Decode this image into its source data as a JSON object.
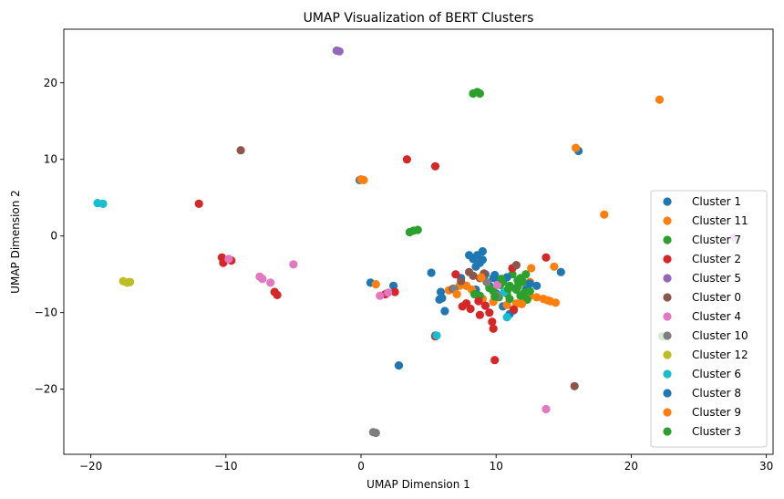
{
  "chart_data": {
    "type": "scatter",
    "title": "UMAP Visualization of BERT Clusters",
    "xlabel": "UMAP Dimension 1",
    "ylabel": "UMAP Dimension 2",
    "xlim": [
      -22,
      30.5
    ],
    "ylim": [
      -28.5,
      27
    ],
    "xticks": [
      -20,
      -10,
      0,
      10,
      20,
      30
    ],
    "yticks": [
      -20,
      -10,
      0,
      10,
      20
    ],
    "legend_position": "lower right",
    "series": [
      {
        "name": "Cluster 1",
        "color": "#1f77b4",
        "points": [
          [
            8,
            -2.5
          ],
          [
            8.3,
            -3
          ],
          [
            8.6,
            -2.5
          ],
          [
            9,
            -2
          ],
          [
            8.8,
            -3.5
          ],
          [
            8.5,
            -4
          ],
          [
            9.2,
            -5
          ],
          [
            9.8,
            -5.5
          ],
          [
            10.2,
            -6
          ],
          [
            9.5,
            -6.5
          ],
          [
            10,
            -7.5
          ],
          [
            11.5,
            -6.8
          ],
          [
            12.2,
            -7
          ],
          [
            13,
            -6.5
          ],
          [
            14.8,
            -4.7
          ],
          [
            7.4,
            -5.5
          ],
          [
            7.8,
            -6.5
          ],
          [
            8.5,
            -7
          ],
          [
            5.9,
            -7.3
          ],
          [
            5.8,
            -8.3
          ],
          [
            6.2,
            -9.8
          ],
          [
            5.2,
            -4.8
          ],
          [
            5.5,
            -13
          ],
          [
            11,
            -10.2
          ],
          [
            11.3,
            -9.7
          ],
          [
            10.5,
            -9.2
          ],
          [
            0.7,
            -6.1
          ],
          [
            2.4,
            -6.5
          ],
          [
            2.8,
            -16.9
          ],
          [
            16.1,
            11.1
          ],
          [
            -0.1,
            7.3
          ]
        ]
      },
      {
        "name": "Cluster 11",
        "color": "#ff7f0e",
        "points": [
          [
            22.1,
            17.8
          ],
          [
            15.9,
            11.5
          ],
          [
            0,
            7.4
          ],
          [
            0.2,
            7.3
          ],
          [
            18,
            2.8
          ],
          [
            12.5,
            -7.8
          ],
          [
            13,
            -8
          ],
          [
            13.5,
            -8.2
          ],
          [
            14,
            -8.5
          ],
          [
            14.4,
            -8.7
          ],
          [
            12,
            -8.5
          ],
          [
            11.5,
            -8.8
          ],
          [
            10.8,
            -9
          ],
          [
            9.8,
            -8.6
          ],
          [
            9,
            -8.2
          ],
          [
            8.2,
            -7
          ],
          [
            7.8,
            -6.5
          ],
          [
            7.3,
            -6.5
          ],
          [
            6.5,
            -7.1
          ],
          [
            1.1,
            -6.3
          ],
          [
            12.6,
            -4.2
          ],
          [
            14.3,
            -4
          ],
          [
            12.5,
            -6
          ]
        ]
      },
      {
        "name": "Cluster 7",
        "color": "#2ca02c",
        "points": [
          [
            8.3,
            18.6
          ],
          [
            8.6,
            18.8
          ],
          [
            8.8,
            18.6
          ],
          [
            3.6,
            0.5
          ],
          [
            3.9,
            0.7
          ],
          [
            4.2,
            0.8
          ],
          [
            10.5,
            -6
          ],
          [
            11,
            -6.5
          ],
          [
            11.5,
            -7
          ],
          [
            12,
            -6
          ],
          [
            11.8,
            -5.5
          ],
          [
            11.2,
            -5
          ],
          [
            10.8,
            -7.5
          ],
          [
            11,
            -8.2
          ],
          [
            10.2,
            -8
          ],
          [
            9.8,
            -7.2
          ],
          [
            12.2,
            -5
          ],
          [
            12.5,
            -7.2
          ],
          [
            9.5,
            -6.8
          ],
          [
            8.8,
            -7.8
          ],
          [
            8.4,
            -7.6
          ],
          [
            11.8,
            -7.8
          ],
          [
            10.3,
            -6.4
          ],
          [
            11.6,
            -6.6
          ],
          [
            12.3,
            -8.3
          ]
        ]
      },
      {
        "name": "Cluster 2",
        "color": "#d62728",
        "points": [
          [
            -12,
            4.2
          ],
          [
            3.4,
            10
          ],
          [
            5.5,
            9.1
          ],
          [
            -10.3,
            -2.8
          ],
          [
            -10.2,
            -3.5
          ],
          [
            -9.6,
            -3.2
          ],
          [
            -6.4,
            -7.3
          ],
          [
            -6.2,
            -7.7
          ],
          [
            7.5,
            -9.2
          ],
          [
            8.1,
            -9.5
          ],
          [
            8.8,
            -10.3
          ],
          [
            9.5,
            -10
          ],
          [
            9.8,
            -12.1
          ],
          [
            9.7,
            -11.2
          ],
          [
            9.9,
            -16.2
          ],
          [
            5.5,
            -13.1
          ],
          [
            2.5,
            -7.3
          ],
          [
            1.8,
            -7.6
          ],
          [
            11.2,
            -4.2
          ],
          [
            13.7,
            -2.8
          ],
          [
            7,
            -5
          ],
          [
            8.7,
            -8.5
          ],
          [
            9.2,
            -9.1
          ],
          [
            7.8,
            -8.8
          ],
          [
            11.3,
            -9.6
          ]
        ]
      },
      {
        "name": "Cluster 5",
        "color": "#9467bd",
        "points": [
          [
            -1.8,
            24.2
          ],
          [
            -1.6,
            24.1
          ]
        ]
      },
      {
        "name": "Cluster 0",
        "color": "#8c564b",
        "points": [
          [
            -8.9,
            11.2
          ],
          [
            8,
            -4.7
          ],
          [
            8.3,
            -5.2
          ],
          [
            8.8,
            -5.5
          ],
          [
            11.5,
            -3.8
          ],
          [
            6.8,
            -6.9
          ],
          [
            15.8,
            -19.6
          ],
          [
            7.4,
            -5.9
          ],
          [
            9.1,
            -4.9
          ]
        ]
      },
      {
        "name": "Cluster 4",
        "color": "#e377c2",
        "points": [
          [
            27.6,
            -0.2
          ],
          [
            -7.5,
            -5.3
          ],
          [
            -7.3,
            -5.6
          ],
          [
            -6.7,
            -6.1
          ],
          [
            -5,
            -3.7
          ],
          [
            -9.8,
            -3
          ],
          [
            1.4,
            -7.8
          ],
          [
            2,
            -7.4
          ],
          [
            13.7,
            -22.6
          ],
          [
            10.1,
            -6.4
          ]
        ]
      },
      {
        "name": "Cluster 10",
        "color": "#7f7f7f",
        "points": [
          [
            0.9,
            -25.6
          ],
          [
            1.1,
            -25.7
          ],
          [
            6.9,
            -6.9
          ],
          [
            9.3,
            -6
          ],
          [
            10.1,
            -7.8
          ]
        ]
      },
      {
        "name": "Cluster 12",
        "color": "#bcbd22",
        "points": [
          [
            -17.6,
            -5.9
          ],
          [
            -17.3,
            -6.1
          ],
          [
            -17.1,
            -6
          ]
        ]
      },
      {
        "name": "Cluster 6",
        "color": "#17becf",
        "points": [
          [
            -19.5,
            4.3
          ],
          [
            -19.1,
            4.2
          ],
          [
            5.6,
            -13
          ],
          [
            10.8,
            -10.6
          ],
          [
            10.6,
            -7.3
          ]
        ]
      },
      {
        "name": "Cluster 8",
        "color": "#1f77b4",
        "points": [
          [
            9.9,
            -5.1
          ],
          [
            10.8,
            -5.4
          ],
          [
            12.5,
            -6.2
          ],
          [
            6,
            -8.1
          ],
          [
            9,
            -3.1
          ]
        ]
      },
      {
        "name": "Cluster 9",
        "color": "#ff7f0e",
        "points": [
          [
            8.9,
            -5.4
          ],
          [
            11.9,
            -8.9
          ],
          [
            13.8,
            -8.4
          ],
          [
            7.1,
            -7.6
          ]
        ]
      },
      {
        "name": "Cluster 3",
        "color": "#2ca02c",
        "points": [
          [
            10.9,
            -6.9
          ],
          [
            11.6,
            -5.8
          ],
          [
            12.1,
            -7.4
          ],
          [
            22.3,
            -13.1
          ],
          [
            9.9,
            -7.9
          ],
          [
            10.4,
            -5.6
          ]
        ]
      }
    ]
  }
}
